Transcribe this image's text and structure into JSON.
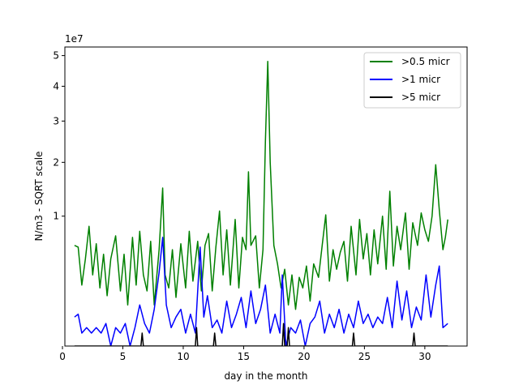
{
  "chart_data": {
    "type": "line",
    "title": "",
    "xlabel": "day in the month",
    "ylabel": "N/m3 - SQRT scale",
    "y_scale": "sqrt",
    "y_offset_label": "1e7",
    "xlim": [
      0.2,
      33.5
    ],
    "ylim": [
      0,
      5.3
    ],
    "x_ticks": [
      0,
      5,
      10,
      15,
      20,
      25,
      30
    ],
    "x_tick_labels": [
      "0",
      "5",
      "10",
      "15",
      "20",
      "25",
      "30"
    ],
    "y_ticks": [
      1,
      2,
      3,
      4,
      5
    ],
    "y_tick_labels": [
      "1",
      "2",
      "3",
      "4",
      "5"
    ],
    "legend": {
      "placement": "top-right"
    },
    "series": [
      {
        "name": ">0.5 micr",
        "color": "#008000",
        "points": [
          [
            1.0,
            0.6
          ],
          [
            1.3,
            0.58
          ],
          [
            1.6,
            0.22
          ],
          [
            1.9,
            0.45
          ],
          [
            2.2,
            0.85
          ],
          [
            2.5,
            0.3
          ],
          [
            2.8,
            0.62
          ],
          [
            3.1,
            0.2
          ],
          [
            3.4,
            0.5
          ],
          [
            3.7,
            0.15
          ],
          [
            4.0,
            0.45
          ],
          [
            4.4,
            0.72
          ],
          [
            4.8,
            0.18
          ],
          [
            5.1,
            0.5
          ],
          [
            5.4,
            0.1
          ],
          [
            5.8,
            0.7
          ],
          [
            6.1,
            0.22
          ],
          [
            6.4,
            0.78
          ],
          [
            6.7,
            0.3
          ],
          [
            7.0,
            0.18
          ],
          [
            7.3,
            0.65
          ],
          [
            7.6,
            0.1
          ],
          [
            8.0,
            0.55
          ],
          [
            8.3,
            1.48
          ],
          [
            8.5,
            0.3
          ],
          [
            8.8,
            0.2
          ],
          [
            9.1,
            0.55
          ],
          [
            9.4,
            0.14
          ],
          [
            9.8,
            0.62
          ],
          [
            10.2,
            0.2
          ],
          [
            10.5,
            0.78
          ],
          [
            10.8,
            0.25
          ],
          [
            11.2,
            0.65
          ],
          [
            11.5,
            0.18
          ],
          [
            11.8,
            0.6
          ],
          [
            12.1,
            0.75
          ],
          [
            12.4,
            0.18
          ],
          [
            12.7,
            0.58
          ],
          [
            13.0,
            1.08
          ],
          [
            13.3,
            0.3
          ],
          [
            13.6,
            0.8
          ],
          [
            13.9,
            0.22
          ],
          [
            14.3,
            0.95
          ],
          [
            14.6,
            0.2
          ],
          [
            14.9,
            0.7
          ],
          [
            15.2,
            0.55
          ],
          [
            15.4,
            1.8
          ],
          [
            15.6,
            0.6
          ],
          [
            16.0,
            0.72
          ],
          [
            16.3,
            0.2
          ],
          [
            16.6,
            0.55
          ],
          [
            16.8,
            2.5
          ],
          [
            17.0,
            4.8
          ],
          [
            17.2,
            2.0
          ],
          [
            17.5,
            0.6
          ],
          [
            17.8,
            0.4
          ],
          [
            18.1,
            0.2
          ],
          [
            18.4,
            0.35
          ],
          [
            18.7,
            0.1
          ],
          [
            19.0,
            0.3
          ],
          [
            19.3,
            0.08
          ],
          [
            19.6,
            0.28
          ],
          [
            19.9,
            0.2
          ],
          [
            20.2,
            0.38
          ],
          [
            20.5,
            0.12
          ],
          [
            20.8,
            0.4
          ],
          [
            21.2,
            0.28
          ],
          [
            21.5,
            0.6
          ],
          [
            21.8,
            1.02
          ],
          [
            22.1,
            0.25
          ],
          [
            22.4,
            0.55
          ],
          [
            22.7,
            0.35
          ],
          [
            23.0,
            0.52
          ],
          [
            23.3,
            0.65
          ],
          [
            23.6,
            0.25
          ],
          [
            23.9,
            0.85
          ],
          [
            24.3,
            0.3
          ],
          [
            24.6,
            0.95
          ],
          [
            24.9,
            0.45
          ],
          [
            25.2,
            0.75
          ],
          [
            25.5,
            0.3
          ],
          [
            25.8,
            0.8
          ],
          [
            26.1,
            0.4
          ],
          [
            26.5,
            1.0
          ],
          [
            26.8,
            0.35
          ],
          [
            27.1,
            1.42
          ],
          [
            27.4,
            0.38
          ],
          [
            27.7,
            0.85
          ],
          [
            28.0,
            0.55
          ],
          [
            28.4,
            1.05
          ],
          [
            28.7,
            0.35
          ],
          [
            29.0,
            0.9
          ],
          [
            29.4,
            0.6
          ],
          [
            29.7,
            1.05
          ],
          [
            30.0,
            0.8
          ],
          [
            30.3,
            0.65
          ],
          [
            30.6,
            1.0
          ],
          [
            30.9,
            1.95
          ],
          [
            31.2,
            1.1
          ],
          [
            31.5,
            0.55
          ],
          [
            31.7,
            0.7
          ],
          [
            31.9,
            0.95
          ]
        ]
      },
      {
        "name": ">1 micr",
        "color": "#0000ff",
        "points": [
          [
            1.0,
            0.05
          ],
          [
            1.3,
            0.06
          ],
          [
            1.6,
            0.01
          ],
          [
            2.0,
            0.02
          ],
          [
            2.4,
            0.01
          ],
          [
            2.8,
            0.02
          ],
          [
            3.2,
            0.01
          ],
          [
            3.6,
            0.03
          ],
          [
            4.0,
            0.0
          ],
          [
            4.4,
            0.02
          ],
          [
            4.8,
            0.01
          ],
          [
            5.2,
            0.03
          ],
          [
            5.6,
            0.0
          ],
          [
            6.0,
            0.02
          ],
          [
            6.4,
            0.1
          ],
          [
            6.8,
            0.03
          ],
          [
            7.2,
            0.01
          ],
          [
            7.6,
            0.08
          ],
          [
            8.0,
            0.32
          ],
          [
            8.3,
            0.7
          ],
          [
            8.6,
            0.1
          ],
          [
            9.0,
            0.02
          ],
          [
            9.4,
            0.05
          ],
          [
            9.8,
            0.08
          ],
          [
            10.2,
            0.01
          ],
          [
            10.6,
            0.06
          ],
          [
            11.0,
            0.01
          ],
          [
            11.4,
            0.58
          ],
          [
            11.7,
            0.05
          ],
          [
            12.0,
            0.15
          ],
          [
            12.4,
            0.02
          ],
          [
            12.8,
            0.04
          ],
          [
            13.2,
            0.01
          ],
          [
            13.6,
            0.12
          ],
          [
            14.0,
            0.02
          ],
          [
            14.4,
            0.06
          ],
          [
            14.8,
            0.14
          ],
          [
            15.2,
            0.02
          ],
          [
            15.6,
            0.18
          ],
          [
            16.0,
            0.03
          ],
          [
            16.4,
            0.08
          ],
          [
            16.8,
            0.22
          ],
          [
            17.2,
            0.01
          ],
          [
            17.6,
            0.06
          ],
          [
            18.0,
            0.01
          ],
          [
            18.2,
            0.3
          ],
          [
            18.5,
            0.0
          ],
          [
            18.9,
            0.02
          ],
          [
            19.3,
            0.01
          ],
          [
            19.7,
            0.04
          ],
          [
            20.1,
            0.0
          ],
          [
            20.5,
            0.03
          ],
          [
            20.9,
            0.05
          ],
          [
            21.3,
            0.12
          ],
          [
            21.7,
            0.01
          ],
          [
            22.1,
            0.06
          ],
          [
            22.5,
            0.02
          ],
          [
            22.9,
            0.08
          ],
          [
            23.3,
            0.01
          ],
          [
            23.7,
            0.06
          ],
          [
            24.1,
            0.02
          ],
          [
            24.5,
            0.12
          ],
          [
            24.9,
            0.03
          ],
          [
            25.3,
            0.06
          ],
          [
            25.7,
            0.02
          ],
          [
            26.1,
            0.05
          ],
          [
            26.5,
            0.03
          ],
          [
            26.9,
            0.14
          ],
          [
            27.3,
            0.02
          ],
          [
            27.7,
            0.25
          ],
          [
            28.1,
            0.04
          ],
          [
            28.5,
            0.18
          ],
          [
            28.9,
            0.02
          ],
          [
            29.3,
            0.09
          ],
          [
            29.7,
            0.04
          ],
          [
            30.1,
            0.3
          ],
          [
            30.5,
            0.05
          ],
          [
            30.9,
            0.22
          ],
          [
            31.2,
            0.38
          ],
          [
            31.5,
            0.02
          ],
          [
            31.9,
            0.03
          ]
        ]
      },
      {
        "name": ">5 micr",
        "color": "#000000",
        "points": [
          [
            1.0,
            0.0
          ],
          [
            6.5,
            0.0
          ],
          [
            6.6,
            0.01
          ],
          [
            6.7,
            0.0
          ],
          [
            11.0,
            0.0
          ],
          [
            11.1,
            0.02
          ],
          [
            11.2,
            0.0
          ],
          [
            12.5,
            0.0
          ],
          [
            12.6,
            0.01
          ],
          [
            12.7,
            0.0
          ],
          [
            18.2,
            0.0
          ],
          [
            18.3,
            0.03
          ],
          [
            18.4,
            0.0
          ],
          [
            18.6,
            0.0
          ],
          [
            18.7,
            0.02
          ],
          [
            18.8,
            0.0
          ],
          [
            24.0,
            0.0
          ],
          [
            24.1,
            0.01
          ],
          [
            24.2,
            0.0
          ],
          [
            29.0,
            0.0
          ],
          [
            29.1,
            0.01
          ],
          [
            29.2,
            0.0
          ],
          [
            31.9,
            0.0
          ]
        ]
      }
    ]
  }
}
